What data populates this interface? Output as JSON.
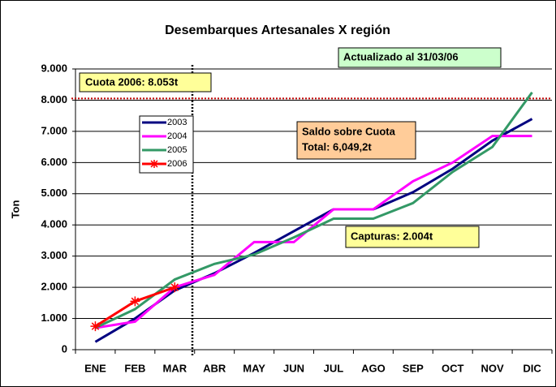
{
  "chart_data": {
    "type": "line",
    "title": "Desembarques Artesanales X región",
    "y_label": "Ton",
    "categories": [
      "ENE",
      "FEB",
      "MAR",
      "ABR",
      "MAY",
      "JUN",
      "JUL",
      "AGO",
      "SEP",
      "OCT",
      "NOV",
      "DIC"
    ],
    "series": [
      {
        "name": "2003",
        "color": "#000080",
        "values": [
          250,
          1000,
          1900,
          2450,
          3100,
          3800,
          4500,
          4500,
          5050,
          5800,
          6700,
          7400
        ]
      },
      {
        "name": "2004",
        "color": "#ff00ff",
        "values": [
          700,
          900,
          2000,
          2400,
          3450,
          3450,
          4500,
          4500,
          5400,
          6000,
          6850,
          6850
        ]
      },
      {
        "name": "2005",
        "color": "#339966",
        "values": [
          700,
          1300,
          2250,
          2750,
          3050,
          3600,
          4200,
          4200,
          4700,
          5700,
          6500,
          8250
        ]
      },
      {
        "name": "2006",
        "color": "#ff0000",
        "marker": "star",
        "values": [
          750,
          1550,
          2000,
          null,
          null,
          null,
          null,
          null,
          null,
          null,
          null,
          null
        ]
      }
    ],
    "ylim": [
      0,
      9000
    ],
    "yticks": [
      0,
      {
        "value": 1000,
        "label": "1.000"
      },
      {
        "value": 2000,
        "label": "2.000"
      },
      {
        "value": 3000,
        "label": "3.000"
      },
      {
        "value": 4000,
        "label": "4.000"
      },
      {
        "value": 5000,
        "label": "5.000"
      },
      {
        "value": 6000,
        "label": "6.000"
      },
      {
        "value": 7000,
        "label": "7.000"
      },
      {
        "value": 8000,
        "label": "8.000"
      },
      {
        "value": 9000,
        "label": "9.000"
      }
    ],
    "grid": true,
    "quota": {
      "value": 8053,
      "label": "Cuota 2006: 8.053t",
      "color": "#c00000"
    },
    "annotations": [
      {
        "text": "Actualizado al 31/03/06",
        "color": "#ccffcc"
      },
      {
        "text": [
          "Saldo sobre Cuota",
          "Total: 6,049,2t"
        ],
        "color": "#ffcc99"
      },
      {
        "text": "Capturas: 2.004t",
        "color": "#ffff99"
      }
    ]
  }
}
